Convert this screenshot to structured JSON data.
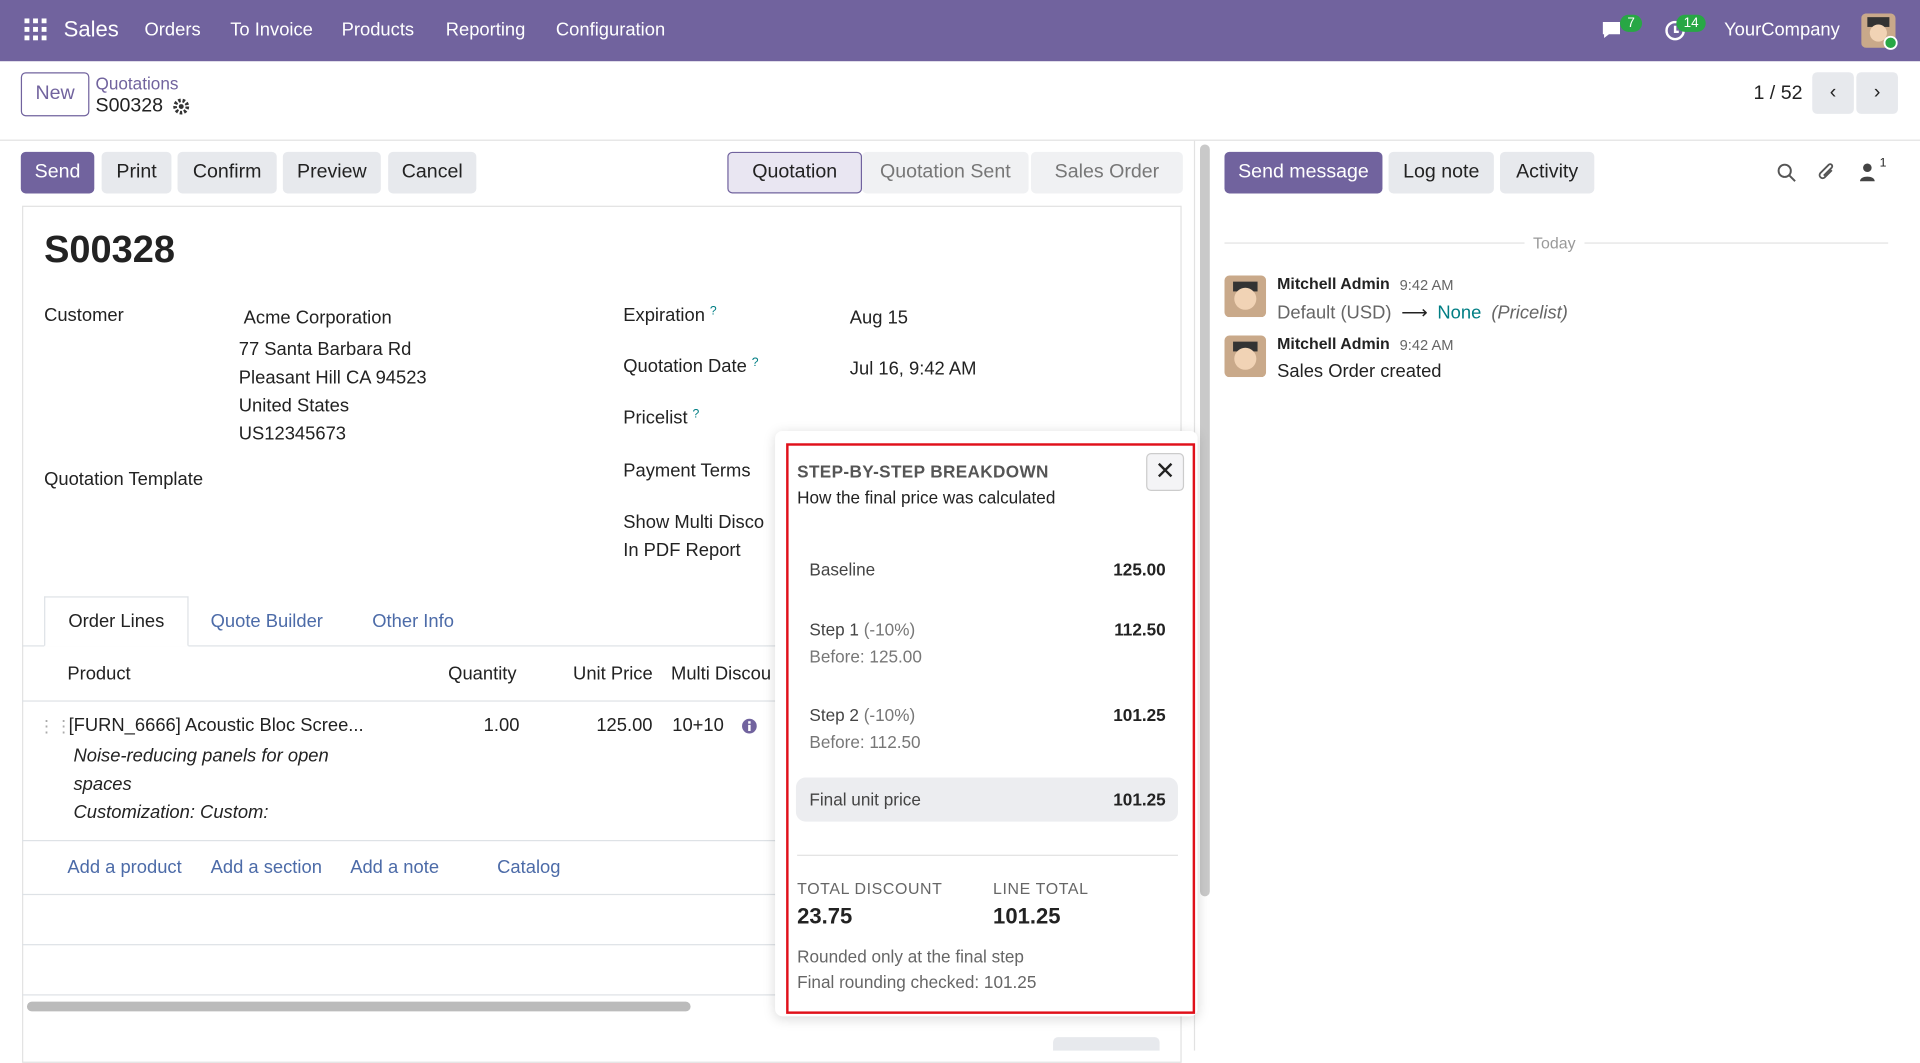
{
  "navbar": {
    "app": "Sales",
    "menu": [
      "Orders",
      "To Invoice",
      "Products",
      "Reporting",
      "Configuration"
    ],
    "messages_count": "7",
    "activities_count": "14",
    "company": "YourCompany"
  },
  "control": {
    "new_button": "New",
    "breadcrumb": "Quotations",
    "record": "S00328",
    "pager": "1 / 52"
  },
  "actions": [
    "Send",
    "Print",
    "Confirm",
    "Preview",
    "Cancel"
  ],
  "statusbar": [
    "Quotation",
    "Quotation Sent",
    "Sales Order"
  ],
  "form": {
    "name": "S00328",
    "customer": {
      "label": "Customer",
      "lines": [
        "Acme Corporation",
        "77 Santa Barbara Rd",
        "Pleasant Hill CA 94523",
        "United States",
        "US12345673"
      ]
    },
    "quotation_template": {
      "label": "Quotation Template"
    },
    "expiration": {
      "label": "Expiration",
      "help": "?",
      "value": "Aug 15"
    },
    "quotation_date": {
      "label": "Quotation Date",
      "help": "?",
      "value": "Jul 16, 9:42 AM"
    },
    "pricelist": {
      "label": "Pricelist",
      "help": "?"
    },
    "payment_terms": {
      "label": "Payment Terms"
    },
    "show_multi": {
      "label": [
        "Show Multi Disco",
        "In PDF Report"
      ]
    },
    "tabs": [
      "Order Lines",
      "Quote Builder",
      "Other Info"
    ],
    "table": {
      "headers": [
        "Product",
        "Quantity",
        "Unit Price",
        "Multi Discou"
      ],
      "line": {
        "product": "[FURN_6666] Acoustic Bloc Scree...",
        "description": [
          "Noise-reducing panels for open",
          "spaces",
          "Customization: Custom:"
        ],
        "quantity": "1.00",
        "unit_price": "125.00",
        "discount": "10+10"
      },
      "add_links": [
        "Add a product",
        "Add a section",
        "Add a note",
        "Catalog"
      ]
    }
  },
  "chatter": {
    "buttons": [
      "Send message",
      "Log note",
      "Activity"
    ],
    "followers": "1",
    "date": "Today",
    "messages": [
      {
        "author": "Mitchell Admin",
        "time": "9:42 AM",
        "old": "Default (USD)",
        "new": "None",
        "field": "(Pricelist)"
      },
      {
        "author": "Mitchell Admin",
        "time": "9:42 AM",
        "body": "Sales Order created"
      }
    ]
  },
  "popover": {
    "title": "STEP-BY-STEP BREAKDOWN",
    "subtitle": "How the final price was calculated",
    "rows": [
      {
        "label": "Baseline",
        "value": "125.00"
      },
      {
        "label": "Step 1",
        "pct": "(-10%)",
        "before": "Before: 125.00",
        "value": "112.50"
      },
      {
        "label": "Step 2",
        "pct": "(-10%)",
        "before": "Before: 112.50",
        "value": "101.25"
      }
    ],
    "final": {
      "label": "Final unit price",
      "value": "101.25"
    },
    "total_discount": {
      "label": "TOTAL DISCOUNT",
      "value": "23.75"
    },
    "line_total": {
      "label": "LINE TOTAL",
      "value": "101.25"
    },
    "notes": [
      "Rounded only at the final step",
      "Final rounding checked: 101.25"
    ]
  }
}
